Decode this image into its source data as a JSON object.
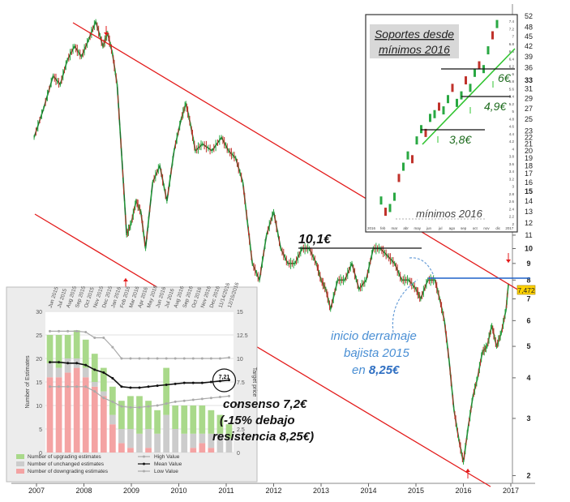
{
  "chart_data": [
    {
      "type": "line",
      "x_ticks": [
        "2007",
        "2008",
        "2009",
        "2010",
        "2011",
        "2012",
        "2013",
        "2014",
        "2015",
        "2016",
        "2017"
      ],
      "y_scale": "log",
      "y_ticks": [
        2,
        3,
        4,
        5,
        6,
        7,
        8,
        9,
        10,
        11,
        12,
        13,
        14,
        15,
        16,
        17,
        18,
        19,
        20,
        21,
        22,
        23,
        25,
        27,
        29,
        31,
        33,
        36,
        39,
        42,
        45,
        48,
        52
      ],
      "ylim": [
        1.85,
        55
      ],
      "last_value_label": "7,472",
      "series": [
        {
          "x": [
            2006.95,
            2007.15,
            2007.35,
            2007.5,
            2007.65,
            2007.8,
            2007.95,
            2008.1,
            2008.25,
            2008.4,
            2008.5,
            2008.6,
            2008.7,
            2008.8,
            2008.9,
            2009.0,
            2009.1,
            2009.2,
            2009.3,
            2009.45,
            2009.6,
            2009.75,
            2009.9,
            2010.05,
            2010.15,
            2010.25,
            2010.35,
            2010.5,
            2010.7,
            2010.9,
            2011.05,
            2011.2,
            2011.35,
            2011.45,
            2011.55,
            2011.7,
            2011.85,
            2012.0,
            2012.15,
            2012.3,
            2012.45,
            2012.6,
            2012.75,
            2012.9,
            2013.0,
            2013.1,
            2013.2,
            2013.35,
            2013.5,
            2013.65,
            2013.8,
            2013.95,
            2014.1,
            2014.25,
            2014.4,
            2014.55,
            2014.7,
            2014.85,
            2015.0,
            2015.1,
            2015.25,
            2015.4,
            2015.5,
            2015.6,
            2015.7,
            2015.8,
            2015.9,
            2016.0,
            2016.1,
            2016.2,
            2016.3,
            2016.4,
            2016.5,
            2016.6,
            2016.7,
            2016.8,
            2016.9,
            2016.95
          ],
          "y": [
            22,
            27,
            34,
            32,
            38,
            42,
            39,
            44,
            50,
            42,
            46,
            40,
            32,
            19,
            11,
            12,
            14,
            13,
            10,
            16,
            18,
            14,
            20,
            25,
            28,
            24,
            20,
            21,
            20,
            22,
            20,
            19,
            16,
            12,
            9,
            8,
            11,
            13,
            10,
            9,
            9,
            10,
            10,
            9,
            8,
            7.5,
            6.5,
            8,
            8,
            9,
            7.5,
            8,
            10,
            10,
            9.5,
            9,
            8,
            8,
            7.5,
            7,
            8,
            8,
            7,
            6,
            4.5,
            3.2,
            2.6,
            2.2,
            2.8,
            3.5,
            4.0,
            4.8,
            5.0,
            5.8,
            5.0,
            5.5,
            6.5,
            7.8
          ]
        }
      ]
    },
    {
      "type": "line",
      "title": [
        "Soportes desde",
        "mínimos 2016"
      ],
      "annotations": [
        "6€",
        "4,9€",
        "3,8€",
        "mínimos 2016"
      ],
      "x_ticks": [
        "2016",
        "feb",
        "mar",
        "abr",
        "may",
        "jun",
        "jul",
        "ago",
        "sep",
        "oct",
        "nov",
        "dic",
        "2017"
      ],
      "y_ticks": [
        2,
        2.2,
        2.4,
        2.6,
        2.8,
        3,
        3.2,
        3.4,
        3.6,
        3.8,
        4,
        4.2,
        4.4,
        4.6,
        4.8,
        5,
        5.2,
        5.4,
        5.6,
        5.8,
        6,
        6.2,
        6.4,
        6.6,
        6.8,
        7,
        7.2,
        7.4
      ]
    },
    {
      "type": "bar",
      "xlabel": "",
      "ylabel": "Number of Estimates",
      "y2label": "Target price",
      "ylim": [
        0,
        30
      ],
      "y2lim": [
        0,
        15
      ],
      "categories": [
        "May 2015",
        "Jun 2015",
        "Jul 2015",
        "Aug 2015",
        "Sep 2015",
        "Oct 2015",
        "Nov 2015",
        "Dec 2015",
        "Jan 2016",
        "Feb 2016",
        "Mar 2016",
        "Apr 2016",
        "May 2016",
        "Jun 2016",
        "Jul 2016",
        "Aug 2016",
        "Sep 2016",
        "Oct 2016",
        "Nov 2016",
        "Dec 2016",
        "Jan 2017"
      ],
      "x_tick_labels": [
        "Jun 2015",
        "Jul 2015",
        "Aug 2015",
        "Sep 2015",
        "Oct 2015",
        "Nov 2015",
        "Dec 2015",
        "Jan 2016",
        "Feb 2016",
        "Mar 2016",
        "Apr 2016",
        "May 2016",
        "Jun 2016",
        "Jul 2016",
        "Aug 2016",
        "Sep 2016",
        "Oct 2016",
        "Nov 2016",
        "Dec 2016",
        "11/14/2016",
        "12/15/2016"
      ],
      "series": [
        {
          "name": "Number of upgrading estimates",
          "color": "#a9d98a",
          "values": [
            6,
            7,
            5,
            6,
            6,
            6,
            5,
            6,
            6,
            7,
            8,
            6,
            5,
            10,
            5,
            6,
            6,
            6,
            5,
            4,
            3
          ]
        },
        {
          "name": "Number of unchanged estimates",
          "color": "#cccccc",
          "values": [
            3,
            2,
            3,
            2,
            2,
            1,
            1,
            2,
            3,
            4,
            4,
            4,
            4,
            8,
            5,
            4,
            3,
            2,
            3,
            4,
            3
          ]
        },
        {
          "name": "Number of downgrading estimates",
          "color": "#f4a3a3",
          "values": [
            16,
            16,
            17,
            18,
            16,
            14,
            12,
            6,
            2,
            1,
            0,
            1,
            0,
            0,
            0,
            0,
            1,
            2,
            1,
            0,
            0
          ]
        }
      ],
      "line_series": [
        {
          "name": "High Value",
          "values": [
            12.9,
            12.9,
            12.9,
            12.9,
            12.8,
            12.2,
            12.2,
            11.2,
            10.0,
            10.0,
            10.0,
            10.0,
            10.0,
            10.0,
            10.0,
            10.0,
            10.0,
            10.0,
            10.0,
            10.0,
            10.1
          ]
        },
        {
          "name": "Mean Value",
          "values": [
            9.6,
            9.6,
            9.5,
            9.5,
            9.3,
            8.8,
            8.5,
            7.9,
            7.0,
            6.9,
            6.9,
            7.0,
            7.1,
            7.2,
            7.3,
            7.4,
            7.4,
            7.4,
            7.5,
            7.6,
            7.7
          ]
        },
        {
          "name": "Low Value",
          "values": [
            7.0,
            7.0,
            7.0,
            7.0,
            7.0,
            6.5,
            5.8,
            5.4,
            4.9,
            4.8,
            4.8,
            4.9,
            5.0,
            5.2,
            5.4,
            5.5,
            5.6,
            5.7,
            5.8,
            5.9,
            6.0
          ]
        }
      ],
      "y_ticks": [
        0,
        5,
        10,
        15,
        20,
        25,
        30
      ],
      "y2_ticks": [
        0,
        2.5,
        5,
        7.5,
        10,
        12.5,
        15
      ],
      "annotation_value": "7,21"
    }
  ],
  "annotations": {
    "high_2012": "10,1€",
    "spill_line1": "inicio derramaje",
    "spill_line2": "bajista 2015",
    "spill_prefix": "en ",
    "spill_value": "8,25€",
    "consensus_line1": "consenso 7,2€",
    "consensus_line2": "(-15% debajo",
    "consensus_line3": "resistencia 8,25€)"
  },
  "colors": {
    "channel": "#e31b1b",
    "resistance": "#1f62c8",
    "support": "#31c431",
    "spill_text": "#4a8fd4",
    "price_tag": "#ffd200"
  }
}
